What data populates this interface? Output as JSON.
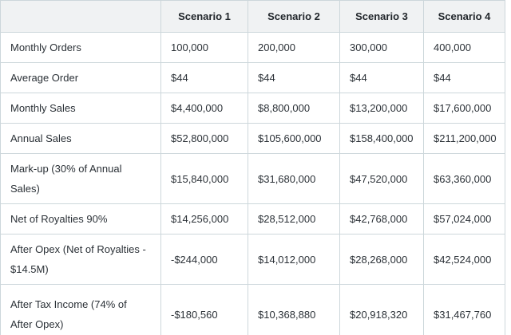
{
  "table": {
    "header": {
      "label_col": "",
      "scenario_1": "Scenario 1",
      "scenario_2": "Scenario 2",
      "scenario_3": "Scenario 3",
      "scenario_4": "Scenario 4"
    },
    "rows": [
      {
        "label": "Monthly Orders",
        "values": [
          "100,000",
          "200,000",
          "300,000",
          "400,000"
        ]
      },
      {
        "label": "Average Order",
        "values": [
          "$44",
          "$44",
          "$44",
          "$44"
        ]
      },
      {
        "label": "Monthly Sales",
        "values": [
          "$4,400,000",
          "$8,800,000",
          "$13,200,000",
          "$17,600,000"
        ]
      },
      {
        "label": "Annual Sales",
        "values": [
          "$52,800,000",
          "$105,600,000",
          "$158,400,000",
          "$211,200,000"
        ]
      },
      {
        "label": "Mark-up (30% of Annual Sales)",
        "values": [
          "$15,840,000",
          "$31,680,000",
          "$47,520,000",
          "$63,360,000"
        ]
      },
      {
        "label": "Net of Royalties 90%",
        "values": [
          "$14,256,000",
          "$28,512,000",
          "$42,768,000",
          "$57,024,000"
        ]
      },
      {
        "label": "After Opex (Net of Royalties - $14.5M)",
        "values": [
          "-$244,000",
          "$14,012,000",
          "$28,268,000",
          "$42,524,000"
        ]
      },
      {
        "label": "After Tax Income (74% of After Opex)",
        "values": [
          "-$180,560",
          "$10,368,880",
          "$20,918,320",
          "$31,467,760"
        ]
      }
    ],
    "colors": {
      "header_bg": "#f0f2f3",
      "border": "#cdd7db",
      "text": "#2b3137"
    }
  }
}
